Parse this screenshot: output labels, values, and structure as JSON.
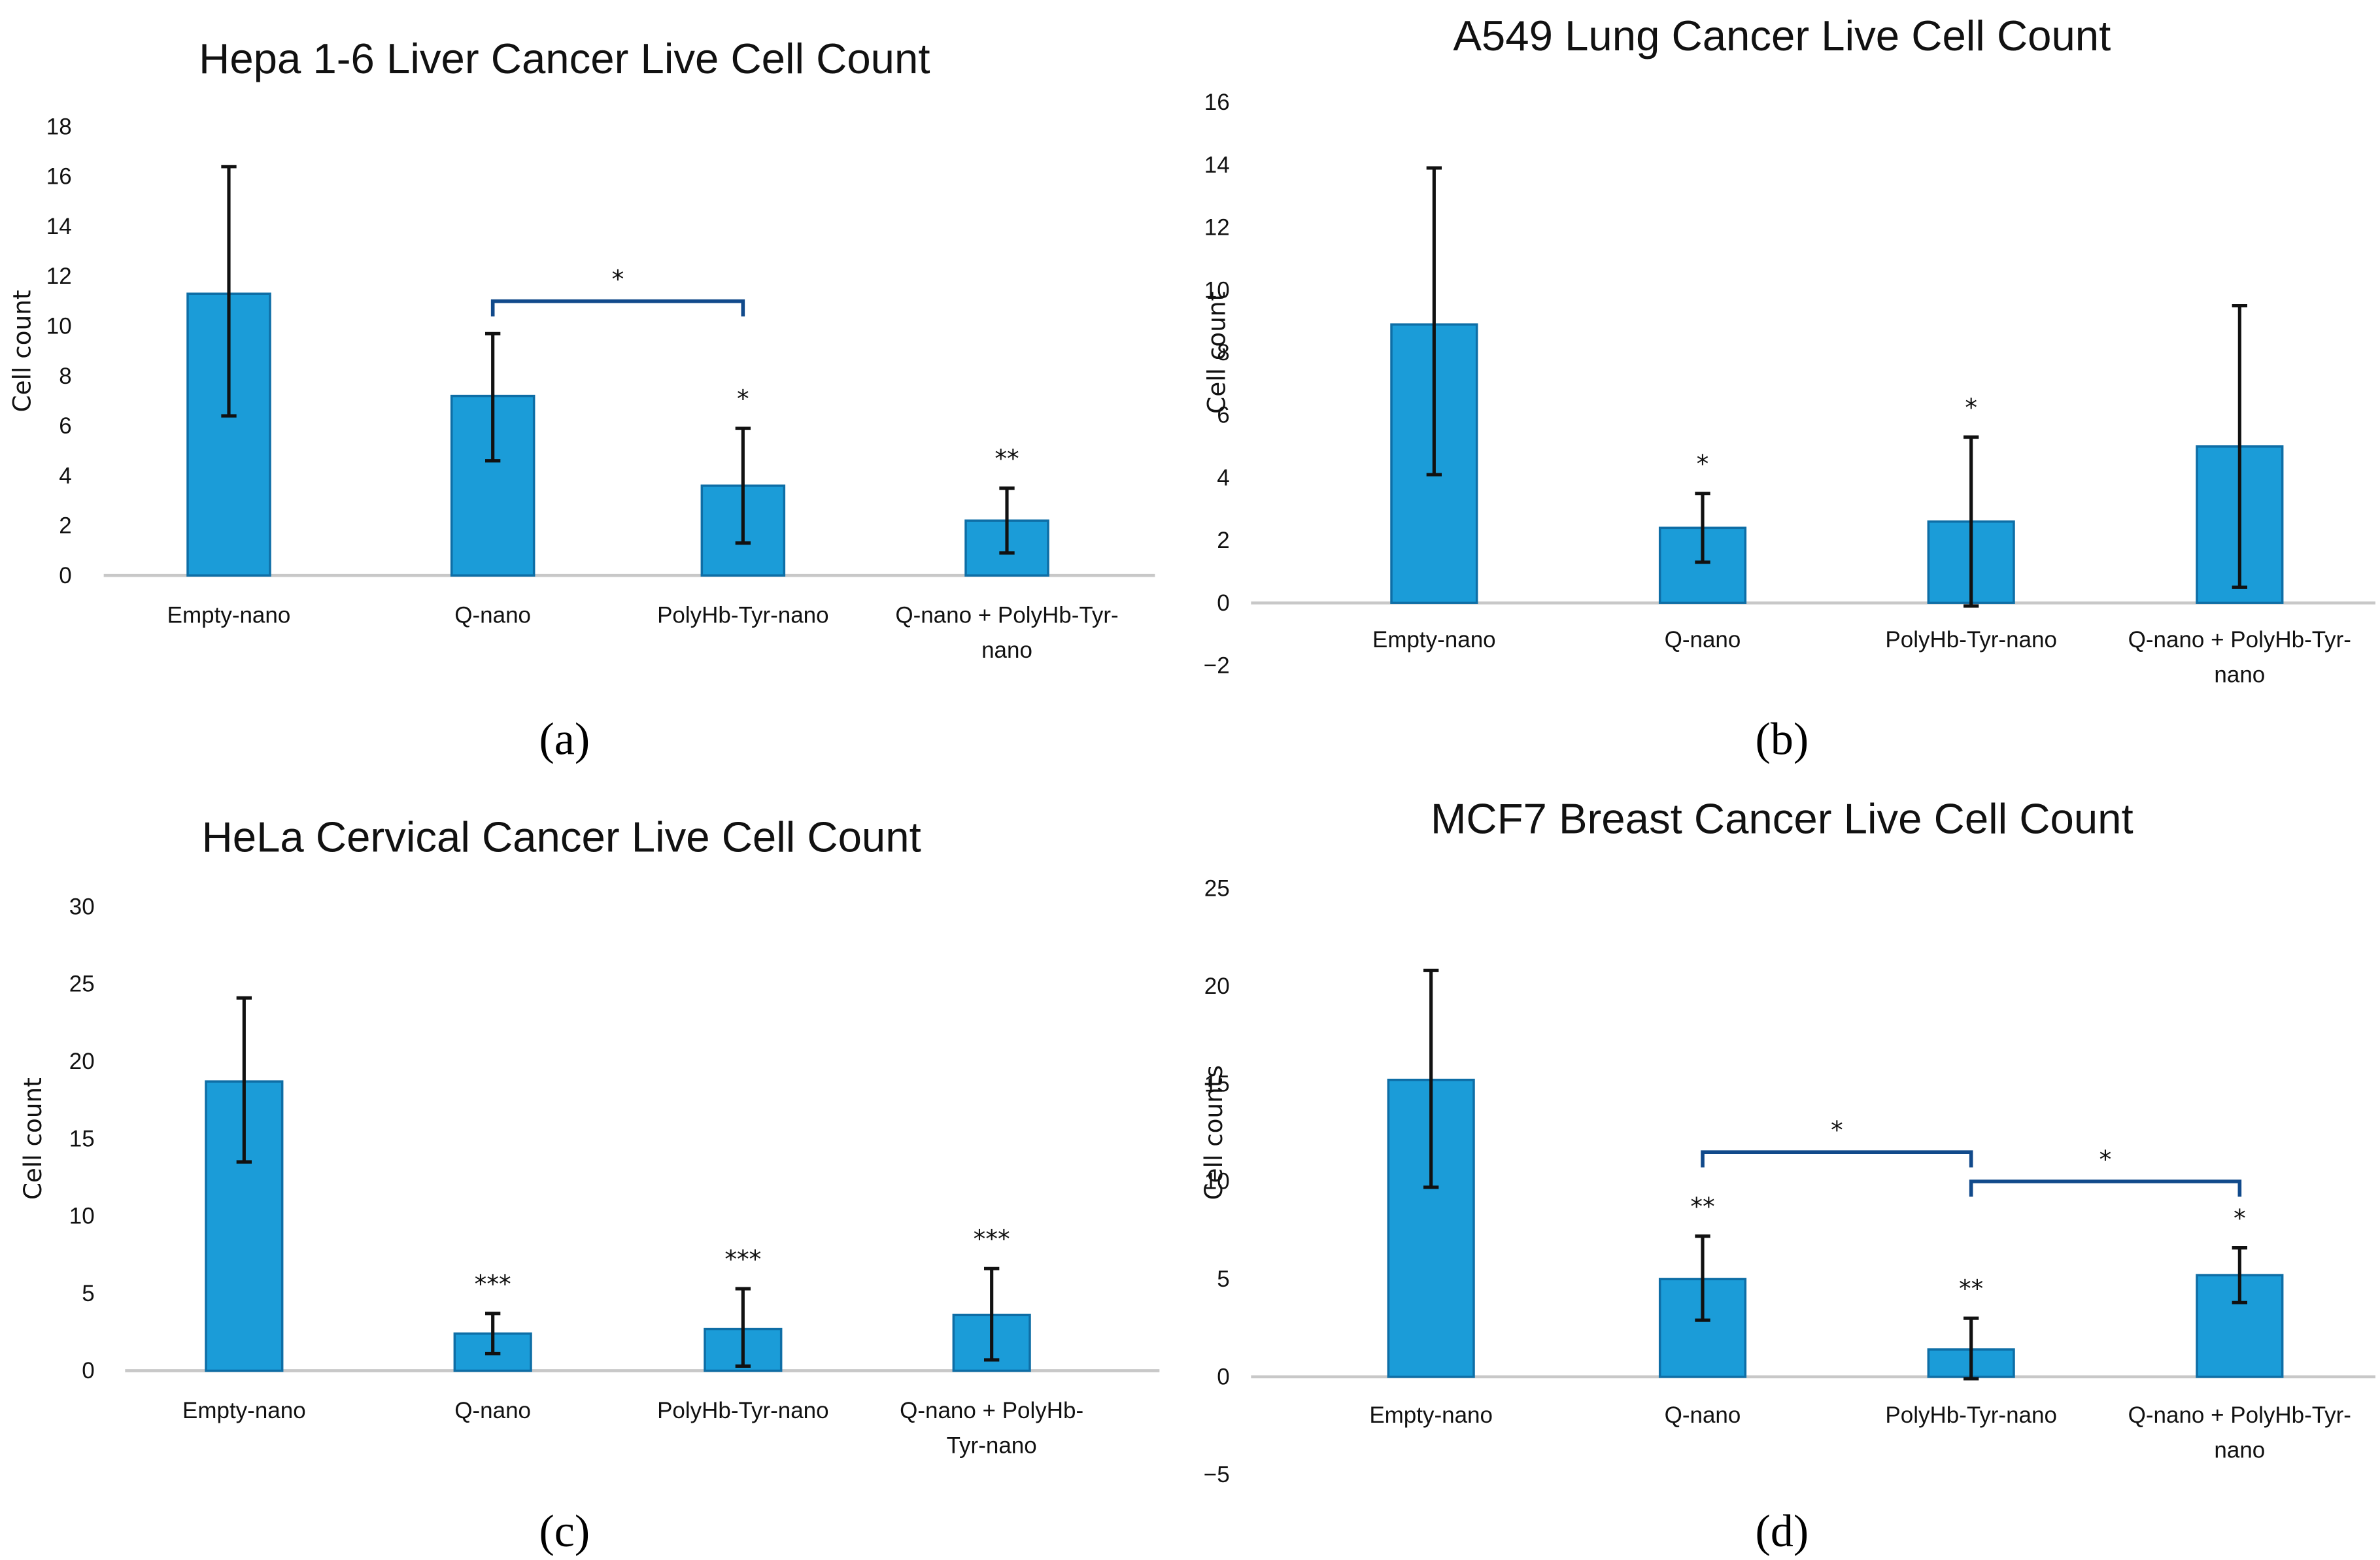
{
  "colors": {
    "bar": "#1b9cd8",
    "bar_edge": "#0e6ea6",
    "bracket": "#114a8b",
    "error_bar": "#111111"
  },
  "chart_data": [
    {
      "panel": "(a)",
      "type": "bar",
      "title": "Hepa 1-6 Liver Cancer Live Cell Count",
      "xlabel": "",
      "ylabel": "Cell count",
      "ylim": [
        0,
        18
      ],
      "yticks": [
        0,
        2,
        4,
        6,
        8,
        10,
        12,
        14,
        16,
        18
      ],
      "grid": false,
      "categories": [
        "Empty-nano",
        "Q-nano",
        "PolyHb-Tyr-nano",
        "Q-nano + PolyHb-Tyr-nano"
      ],
      "category_lines": [
        [
          "Empty-nano"
        ],
        [
          "Q-nano"
        ],
        [
          "PolyHb-Tyr-nano"
        ],
        [
          "Q-nano + PolyHb-Tyr-",
          "nano"
        ]
      ],
      "values": [
        11.3,
        7.2,
        3.6,
        2.2
      ],
      "error_upper": [
        16.4,
        9.7,
        5.9,
        3.5
      ],
      "error_lower": [
        6.4,
        4.6,
        1.3,
        0.9
      ],
      "significance": [
        "",
        "",
        "*",
        "**"
      ],
      "brackets": [
        {
          "from": 1,
          "to": 2,
          "y": 11.0,
          "label": "*"
        }
      ]
    },
    {
      "panel": "(b)",
      "type": "bar",
      "title": "A549 Lung Cancer Live Cell Count",
      "xlabel": "",
      "ylabel": "Cell count",
      "ylim": [
        -2,
        16
      ],
      "yticks": [
        -2,
        0,
        2,
        4,
        6,
        8,
        10,
        12,
        14,
        16
      ],
      "ytick_labels": [
        "−2",
        "0",
        "2",
        "4",
        "6",
        "8",
        "10",
        "12",
        "14",
        "16"
      ],
      "grid": false,
      "categories": [
        "Empty-nano",
        "Q-nano",
        "PolyHb-Tyr-nano",
        "Q-nano + PolyHb-Tyr-nano"
      ],
      "category_lines": [
        [
          "Empty-nano"
        ],
        [
          "Q-nano"
        ],
        [
          "PolyHb-Tyr-nano"
        ],
        [
          "Q-nano + PolyHb-Tyr-",
          "nano"
        ]
      ],
      "values": [
        8.9,
        2.4,
        2.6,
        5.0
      ],
      "error_upper": [
        13.9,
        3.5,
        5.3,
        9.5
      ],
      "error_lower": [
        4.1,
        1.3,
        -0.1,
        0.5
      ],
      "significance": [
        "",
        "*",
        "*",
        ""
      ],
      "brackets": []
    },
    {
      "panel": "(c)",
      "type": "bar",
      "title": "HeLa Cervical Cancer Live Cell Count",
      "xlabel": "",
      "ylabel": "Cell count",
      "ylim": [
        0,
        30
      ],
      "yticks": [
        0,
        5,
        10,
        15,
        20,
        25,
        30
      ],
      "grid": false,
      "categories": [
        "Empty-nano",
        "Q-nano",
        "PolyHb-Tyr-nano",
        "Q-nano + PolyHb-Tyr-nano"
      ],
      "category_lines": [
        [
          "Empty-nano"
        ],
        [
          "Q-nano"
        ],
        [
          "PolyHb-Tyr-nano"
        ],
        [
          "Q-nano + PolyHb-",
          "Tyr-nano"
        ]
      ],
      "values": [
        18.7,
        2.4,
        2.7,
        3.6
      ],
      "error_upper": [
        24.1,
        3.7,
        5.3,
        6.6
      ],
      "error_lower": [
        13.5,
        1.1,
        0.3,
        0.7
      ],
      "significance": [
        "",
        "***",
        "***",
        "***"
      ],
      "brackets": []
    },
    {
      "panel": "(d)",
      "type": "bar",
      "title": "MCF7 Breast Cancer Live Cell Count",
      "xlabel": "",
      "ylabel": "Cell counts",
      "ylim": [
        -5,
        25
      ],
      "yticks": [
        -5,
        0,
        5,
        10,
        15,
        20,
        25
      ],
      "ytick_labels": [
        "−5",
        "0",
        "5",
        "10",
        "15",
        "20",
        "25"
      ],
      "grid": false,
      "categories": [
        "Empty-nano",
        "Q-nano",
        "PolyHb-Tyr-nano",
        "Q-nano + PolyHb-Tyr-nano"
      ],
      "category_lines": [
        [
          "Empty-nano"
        ],
        [
          "Q-nano"
        ],
        [
          "PolyHb-Tyr-nano"
        ],
        [
          "Q-nano + PolyHb-Tyr-",
          "nano"
        ]
      ],
      "values": [
        15.2,
        5.0,
        1.4,
        5.2
      ],
      "error_upper": [
        20.8,
        7.2,
        3.0,
        6.6
      ],
      "error_lower": [
        9.7,
        2.9,
        -0.1,
        3.8
      ],
      "significance": [
        "",
        "**",
        "**",
        "*"
      ],
      "brackets": [
        {
          "from": 1,
          "to": 2,
          "y": 11.5,
          "label": "*"
        },
        {
          "from": 2,
          "to": 3,
          "y": 10.0,
          "label": "*"
        }
      ]
    }
  ]
}
